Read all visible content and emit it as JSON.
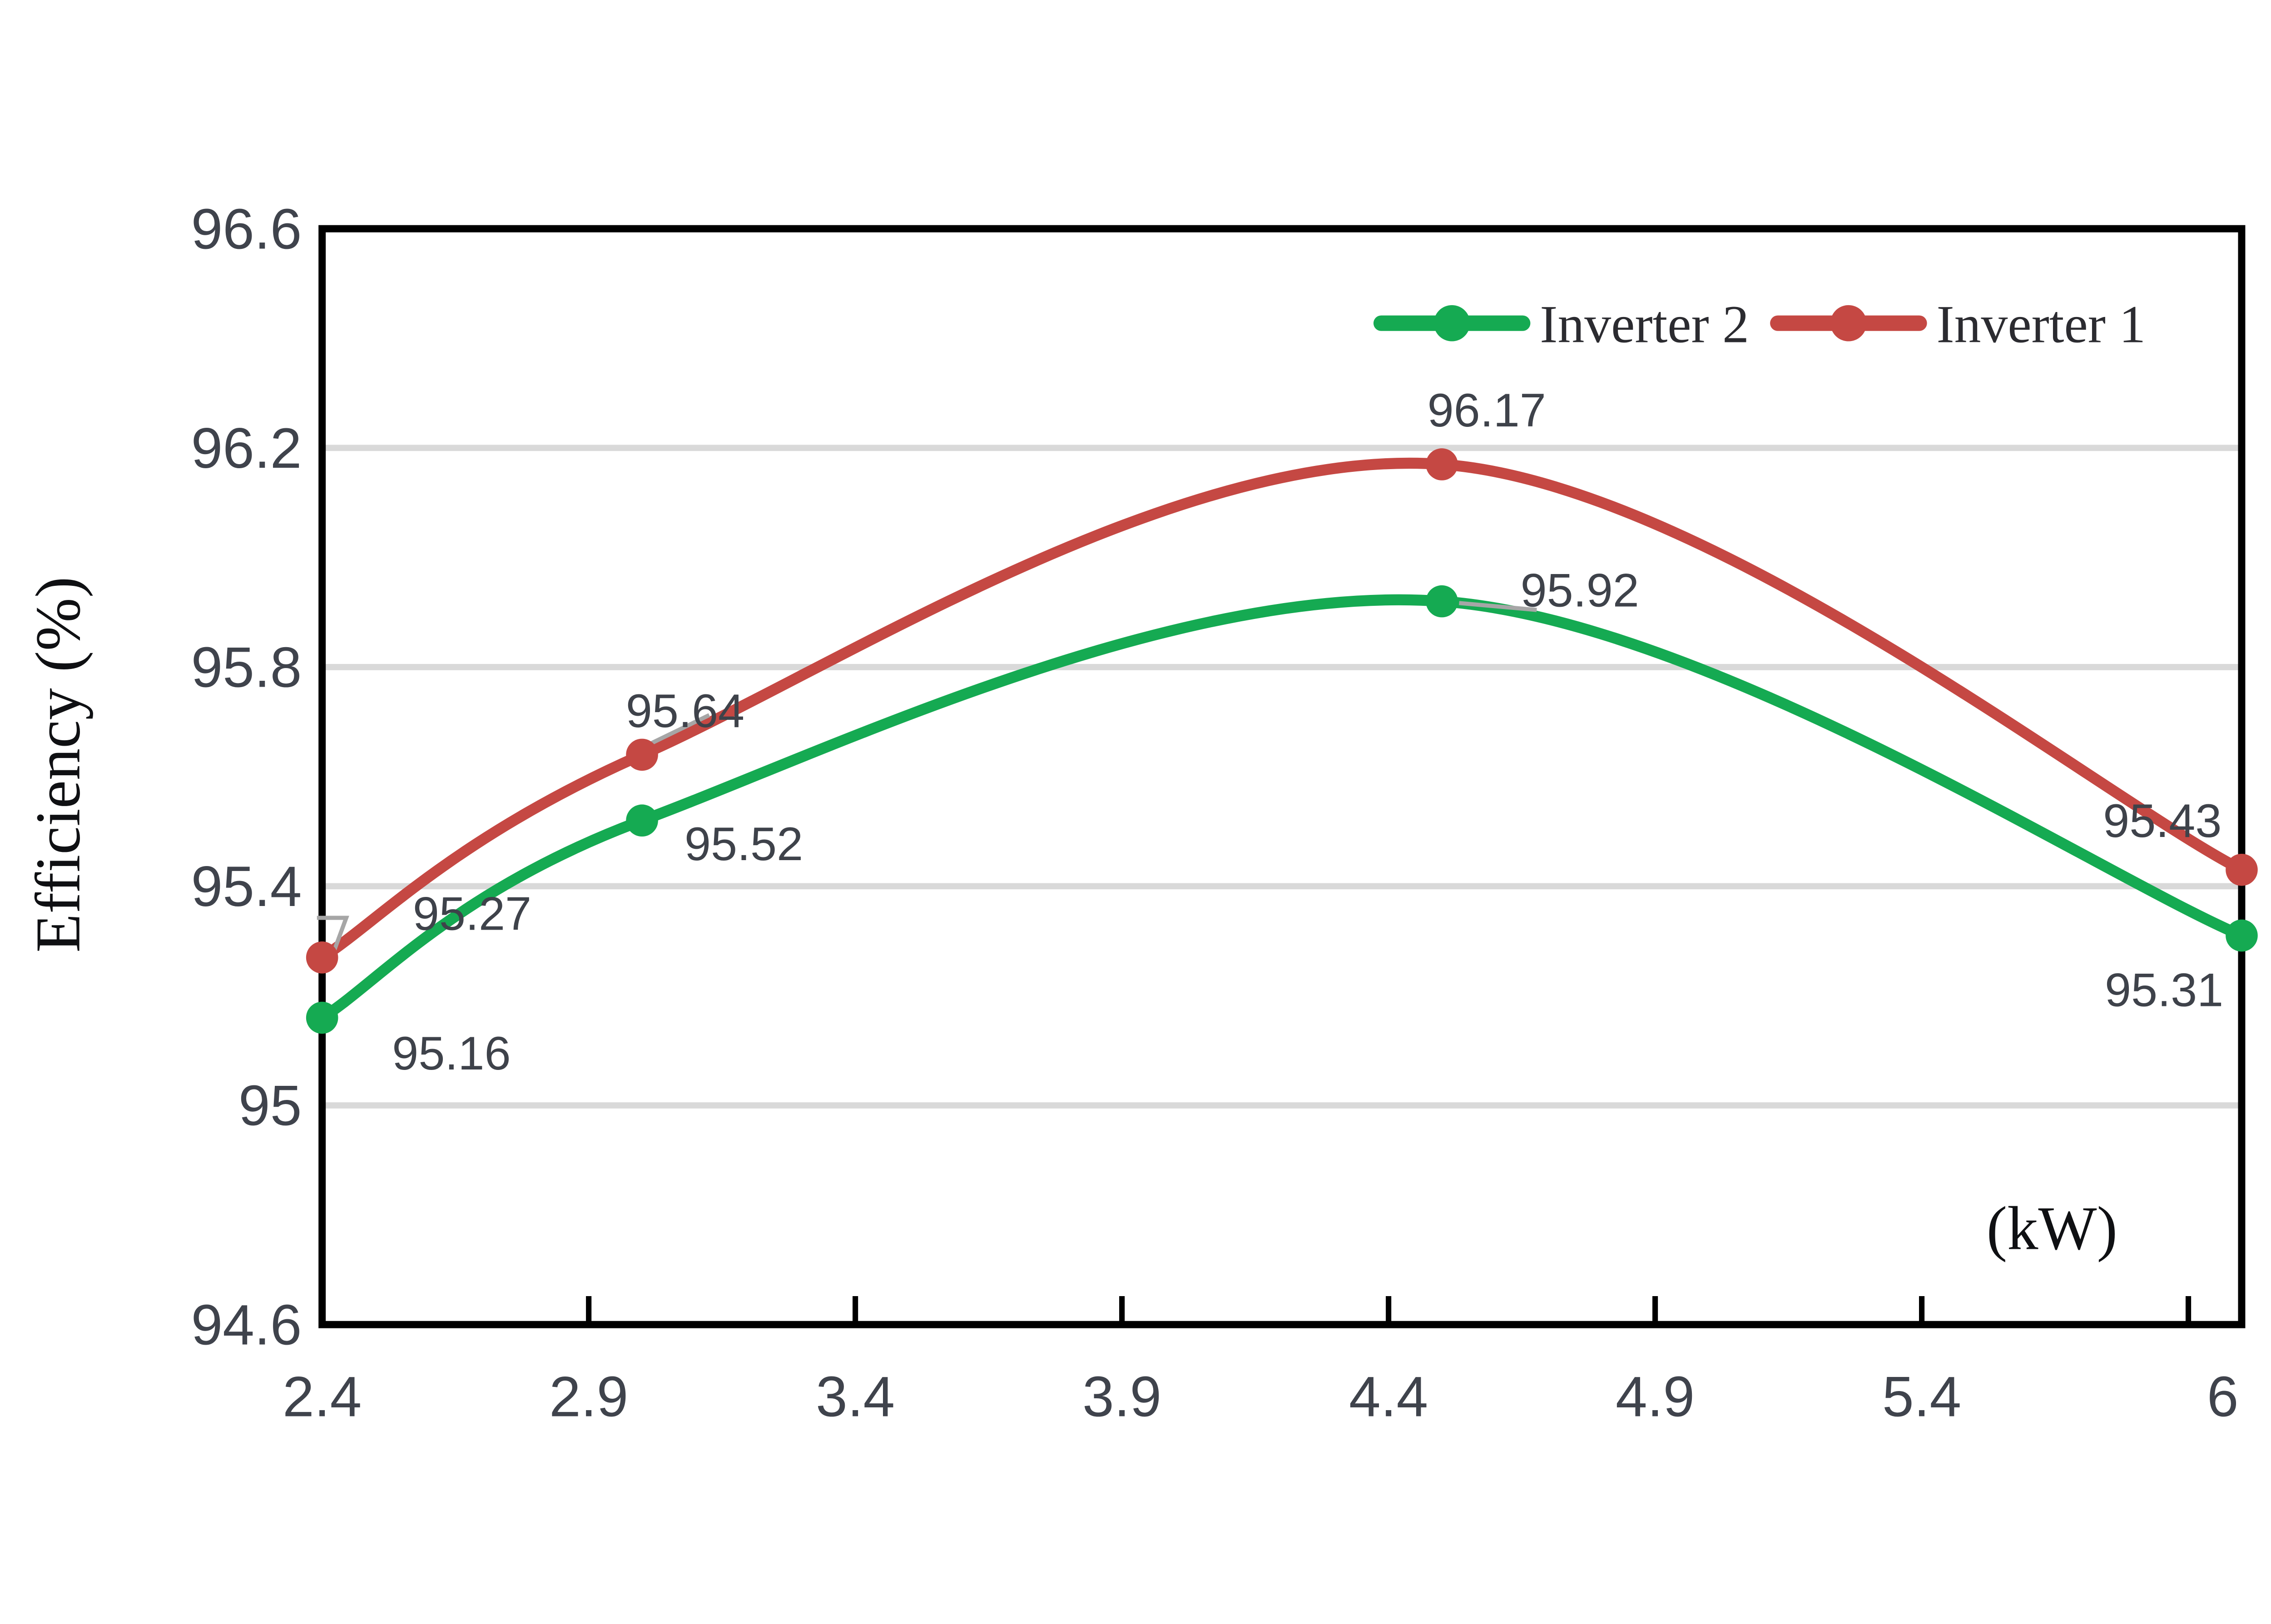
{
  "figure": {
    "background": "#ffffff",
    "border_color": "#000000",
    "gridline_color": "#d9d9d9",
    "leader_line_color": "#a6a6a6",
    "tick_label_color": "#3f434c",
    "data_label_color": "#3e424a",
    "legend_text_color": "#2b2b30",
    "axis_title_color": "#0f1013"
  },
  "chart_data": {
    "type": "line",
    "title": "",
    "xlabel": "(kW)",
    "ylabel": "Efficiency (%)",
    "xlim": [
      2.4,
      6
    ],
    "ylim": [
      94.6,
      96.6
    ],
    "grid": true,
    "gridline_values": [
      95,
      95.4,
      95.8,
      96.2
    ],
    "x_tick_marks": [
      2.4,
      2.9,
      3.4,
      3.9,
      4.4,
      4.9,
      5.4,
      5.9
    ],
    "x_ticks": [
      {
        "v": 2.4,
        "label": "2.4",
        "align": "tick"
      },
      {
        "v": 2.9,
        "label": "2.9",
        "align": "tick"
      },
      {
        "v": 3.4,
        "label": "3.4",
        "align": "tick"
      },
      {
        "v": 3.9,
        "label": "3.9",
        "align": "tick"
      },
      {
        "v": 4.4,
        "label": "4.4",
        "align": "tick"
      },
      {
        "v": 4.9,
        "label": "4.9",
        "align": "tick"
      },
      {
        "v": 5.4,
        "label": "5.4",
        "align": "tick"
      },
      {
        "v": 6,
        "label": "6",
        "align": "edge"
      }
    ],
    "y_ticks": [
      {
        "v": 96.6,
        "label": "96.6"
      },
      {
        "v": 96.2,
        "label": "96.2"
      },
      {
        "v": 95.8,
        "label": "95.8"
      },
      {
        "v": 95.4,
        "label": "95.4"
      },
      {
        "v": 95,
        "label": "95"
      },
      {
        "v": 94.6,
        "label": "94.6"
      }
    ],
    "legend": {
      "position": "top-right-inside",
      "items": [
        {
          "label": "Inverter 2",
          "color": "#15aa52"
        },
        {
          "label": "Inverter 1",
          "color": "#c54843"
        }
      ]
    },
    "series": [
      {
        "name": "Inverter 2",
        "color": "#15aa52",
        "x": [
          2.4,
          3,
          4.5,
          6
        ],
        "values": [
          95.16,
          95.52,
          95.92,
          95.31
        ],
        "data_labels": [
          "95.16",
          "95.52",
          "95.92",
          "95.31"
        ],
        "label_offsets": [
          [
            75,
            20
          ],
          [
            59,
            13
          ],
          [
            80,
            -7
          ],
          [
            -45,
            31
          ]
        ],
        "leaders": [
          null,
          null,
          [
            [
              10,
              1
            ],
            [
              55,
              5
            ]
          ],
          null
        ]
      },
      {
        "name": "Inverter 1",
        "color": "#c54843",
        "x": [
          2.4,
          3,
          4.5,
          6
        ],
        "values": [
          95.27,
          95.64,
          96.17,
          95.43
        ],
        "data_labels": [
          "95.27",
          "95.64",
          "96.17",
          "95.43"
        ],
        "label_offsets": [
          [
            87,
            -26
          ],
          [
            25,
            -26
          ],
          [
            26,
            -32
          ],
          [
            -46,
            -29
          ]
        ],
        "leaders": [
          [
            [
              -3,
              -23
            ],
            [
              14,
              -23
            ],
            [
              14,
              -23
            ],
            [
              7,
              -4
            ]
          ],
          [
            [
              4,
              -6
            ],
            [
              39,
              -23
            ]
          ],
          null,
          null
        ]
      }
    ]
  }
}
